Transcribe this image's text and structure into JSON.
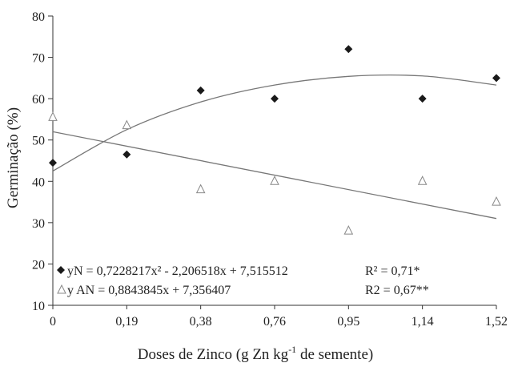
{
  "chart_data": {
    "type": "scatter",
    "categories": [
      "0",
      "0,19",
      "0,38",
      "0,76",
      "0,95",
      "1,14",
      "1,52"
    ],
    "ylim": [
      10,
      80
    ],
    "yticks": [
      10,
      20,
      30,
      40,
      50,
      60,
      70,
      80
    ],
    "xlabel_main": "Doses de Zinco (g Zn kg",
    "xlabel_sup": "-1",
    "xlabel_tail": " de semente)",
    "ylabel": "Germinação (%)",
    "series": [
      {
        "key": "N",
        "marker": "diamond",
        "color": "#1a1a1a",
        "values": [
          44.5,
          46.5,
          62,
          60,
          72,
          60,
          65
        ],
        "trend": {
          "type": "quadratic",
          "at_categories": [
            42.5,
            52.5,
            59.2,
            63.3,
            65.4,
            65.5,
            63.3
          ]
        },
        "equation": "yN = 0,7228217x² - 2,206518x + 7,515512",
        "r2": "R² = 0,71*"
      },
      {
        "key": "AN",
        "marker": "triangle",
        "color": "#888888",
        "values": [
          55.5,
          53.5,
          38,
          40,
          28,
          40,
          35
        ],
        "trend": {
          "type": "linear",
          "at_categories": [
            52,
            48.5,
            45,
            41.5,
            38,
            34.5,
            31
          ]
        },
        "equation": "y AN = 0,8843845x + 7,356407",
        "r2": "R2 = 0,67**"
      }
    ]
  }
}
